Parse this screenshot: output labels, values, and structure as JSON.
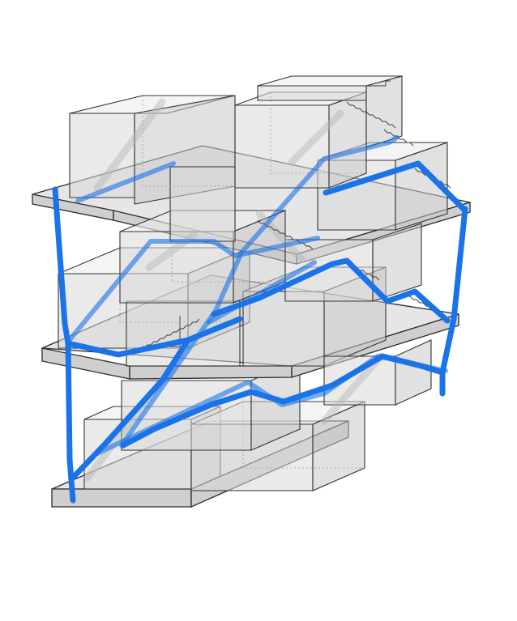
{
  "diagram": {
    "colors": {
      "circulation": "#1a73e8",
      "slab": "#e6e6e6",
      "outline": "#2b2b2b",
      "volume": "#d9d9d9"
    },
    "levels": 3,
    "circulation_routes": 3
  }
}
